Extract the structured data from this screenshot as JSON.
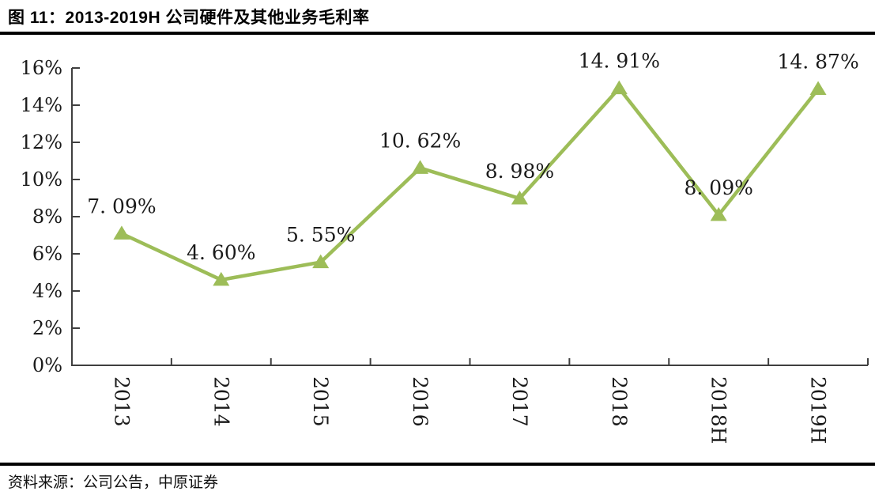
{
  "header": {
    "title": "图 11：2013-2019H 公司硬件及其他业务毛利率"
  },
  "footer": {
    "source": "资料来源：公司公告，中原证券"
  },
  "chart_data": {
    "type": "line",
    "title": "2013-2019H 公司硬件及其他业务毛利率",
    "categories": [
      "2013",
      "2014",
      "2015",
      "2016",
      "2017",
      "2018",
      "2018H",
      "2019H"
    ],
    "series": [
      {
        "name": "硬件及其他业务毛利率",
        "values": [
          7.09,
          4.6,
          5.55,
          10.62,
          8.98,
          14.91,
          8.09,
          14.87
        ]
      }
    ],
    "point_labels": [
      "7. 09%",
      "4. 60%",
      "5. 55%",
      "10. 62%",
      "8. 98%",
      "14. 91%",
      "8. 09%",
      "14. 87%"
    ],
    "xlabel": "",
    "ylabel": "",
    "ylim": [
      0,
      16
    ],
    "ytick_step": 2,
    "ytick_labels": [
      "0%",
      "2%",
      "4%",
      "6%",
      "8%",
      "10%",
      "12%",
      "14%",
      "16%"
    ],
    "x_label_rotation": 90,
    "grid": false,
    "legend_position": "none",
    "line_color": "#9dbd58",
    "marker": "triangle",
    "axis_color": "#3f3f3f",
    "label_color": "#1a1a1a"
  }
}
